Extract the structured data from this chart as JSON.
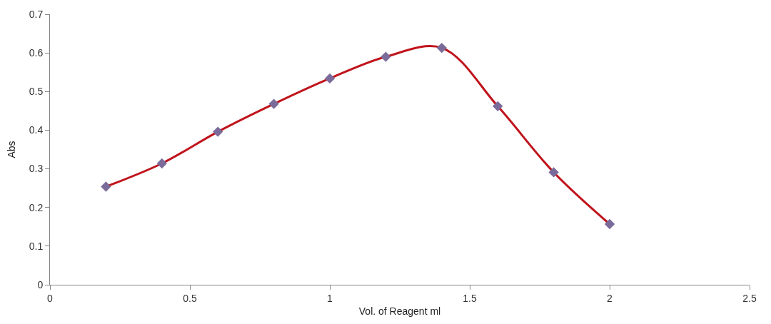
{
  "chart_data": {
    "type": "line",
    "xlabel": "Vol. of Reagent ml",
    "ylabel": "Abs",
    "x": [
      0.2,
      0.4,
      0.6,
      0.8,
      1.0,
      1.2,
      1.4,
      1.6,
      1.8,
      2.0
    ],
    "series": [
      {
        "color": "#c0141c",
        "colors": [
          "#7a6b9a",
          "#7a6b9a",
          "#7a6b9a",
          "#7a6b9a",
          "#7a6b9a",
          "#7a6b9a",
          "#7a6b9a",
          "#7a6b9a",
          "#7a6b9a",
          "#7a6b9a"
        ],
        "values": [
          0.254,
          0.314,
          0.396,
          0.468,
          0.534,
          0.59,
          0.613,
          0.462,
          0.291,
          0.157
        ]
      }
    ],
    "marker": "diamond",
    "line_style": "solid",
    "xlim": [
      0,
      2.5
    ],
    "xticks": [
      0,
      0.5,
      1,
      1.5,
      2,
      2.5
    ],
    "ylim": [
      0,
      0.7
    ],
    "yticks": [
      0,
      0.1,
      0.2,
      0.3,
      0.4,
      0.5,
      0.6,
      0.7
    ]
  }
}
